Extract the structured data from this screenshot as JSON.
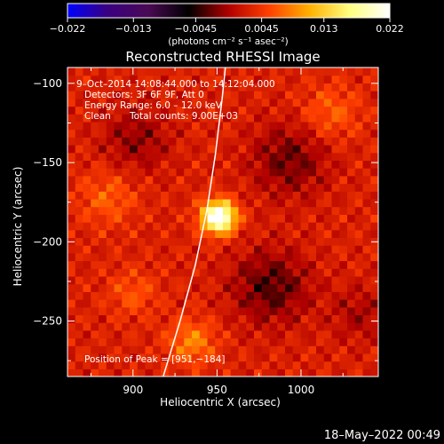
{
  "colors": {
    "background": "#000000",
    "text": "#ffffff",
    "limb": "#ffffff",
    "colormap": [
      "#0000ff",
      "#3a0080",
      "#4a0a55",
      "#000000",
      "#b00000",
      "#ff4000",
      "#ffb000",
      "#ffff80",
      "#ffffff"
    ]
  },
  "colorbar": {
    "tick_labels": [
      "−0.022",
      "−0.013",
      "−0.0045",
      "0.0045",
      "0.013",
      "0.022"
    ],
    "tick_values": [
      -0.022,
      -0.013,
      -0.0045,
      0.0045,
      0.013,
      0.022
    ],
    "range": [
      -0.022,
      0.022
    ],
    "units_label": "(photons cm⁻² s⁻¹ asec⁻²)"
  },
  "chart_data": {
    "type": "heatmap",
    "title": "Reconstructed RHESSI Image",
    "xlabel": "Heliocentric X (arcsec)",
    "ylabel": "Heliocentric Y (arcsec)",
    "xlim": [
      861,
      1046
    ],
    "ylim": [
      -285,
      -90
    ],
    "x_ticks": [
      900,
      950,
      1000
    ],
    "x_tick_labels": [
      "900",
      "950",
      "1000"
    ],
    "y_ticks": [
      -100,
      -150,
      -200,
      -250
    ],
    "y_tick_labels": [
      "−100",
      "−150",
      "−200",
      "−250"
    ],
    "annotations": [
      "9–Oct–2014 14:08:44.000 to 14:12:04.000",
      "Detectors: 3F 6F 9F, Att 0",
      "Energy Range: 6.0 – 12.0 keV",
      "Clean",
      "Total counts: 9.00E+03"
    ],
    "peak_label": "Position of Peak = [951,−184]",
    "peak": {
      "x": 951,
      "y": -184,
      "value": 0.022
    },
    "sources": [
      {
        "x": 951,
        "y": -184,
        "sigma": 7,
        "value": 0.022
      },
      {
        "x": 935,
        "y": -263,
        "sigma": 10,
        "value": 0.006
      },
      {
        "x": 885,
        "y": -172,
        "sigma": 12,
        "value": 0.004
      },
      {
        "x": 1018,
        "y": -118,
        "sigma": 12,
        "value": 0.004
      },
      {
        "x": 900,
        "y": -232,
        "sigma": 10,
        "value": 0.0035
      }
    ],
    "negative_regions": [
      {
        "x": 982,
        "y": -228,
        "sigma": 16,
        "value": -0.006
      },
      {
        "x": 993,
        "y": -148,
        "sigma": 16,
        "value": -0.005
      },
      {
        "x": 902,
        "y": -135,
        "sigma": 14,
        "value": -0.004
      },
      {
        "x": 1035,
        "y": -245,
        "sigma": 12,
        "value": -0.003
      }
    ],
    "limb_curve": [
      [
        918,
        -285
      ],
      [
        928,
        -250
      ],
      [
        937,
        -215
      ],
      [
        944,
        -180
      ],
      [
        949,
        -145
      ],
      [
        953,
        -110
      ],
      [
        955,
        -90
      ]
    ]
  },
  "footer": {
    "timestamp": "18–May–2022 00:49"
  }
}
